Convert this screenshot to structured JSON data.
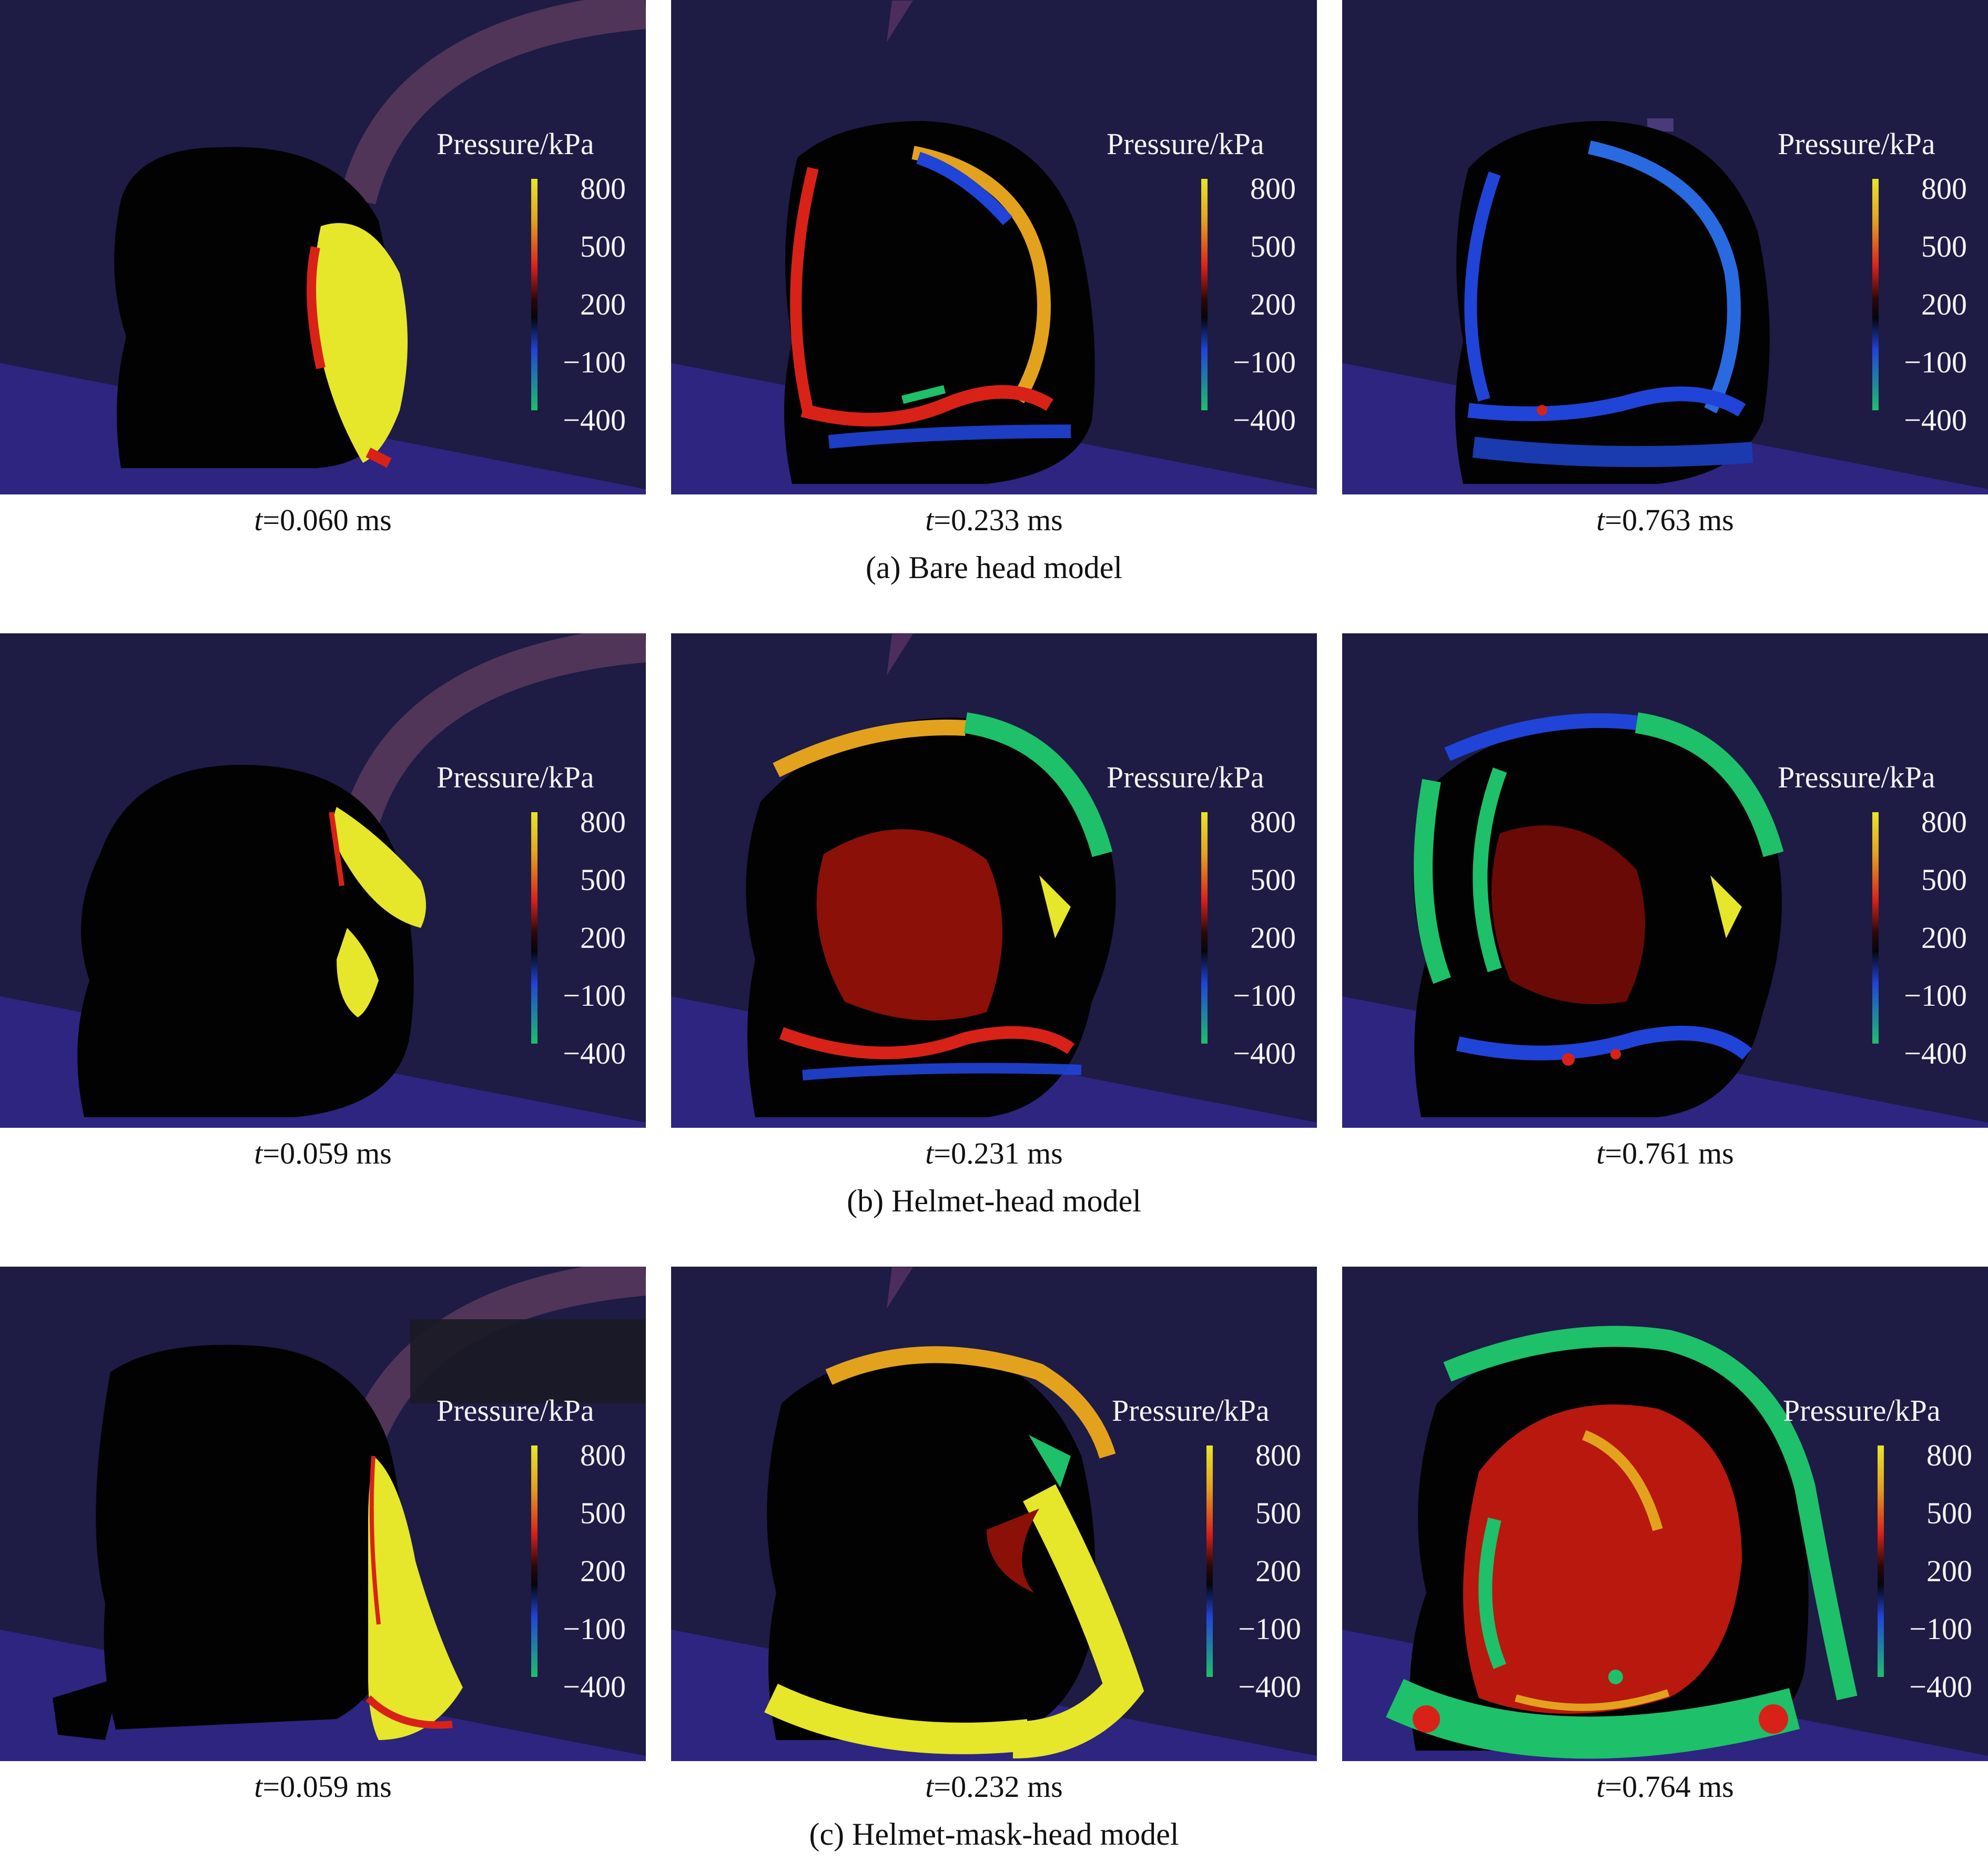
{
  "legend": {
    "title": "Pressure/kPa",
    "ticks": [
      "800",
      "500",
      "200",
      "−100",
      "−400"
    ]
  },
  "rows": [
    {
      "caption": "(a) Bare head model",
      "panels": [
        {
          "t_label": "t",
          "t_value": "=0.060 ms",
          "variant": "a-early"
        },
        {
          "t_label": "t",
          "t_value": "=0.233 ms",
          "variant": "a-mid"
        },
        {
          "t_label": "t",
          "t_value": "=0.763 ms",
          "variant": "a-late"
        }
      ]
    },
    {
      "caption": "(b) Helmet-head model",
      "panels": [
        {
          "t_label": "t",
          "t_value": "=0.059 ms",
          "variant": "b-early"
        },
        {
          "t_label": "t",
          "t_value": "=0.231 ms",
          "variant": "b-mid"
        },
        {
          "t_label": "t",
          "t_value": "=0.761 ms",
          "variant": "b-late"
        }
      ]
    },
    {
      "caption": "(c) Helmet-mask-head model",
      "panels": [
        {
          "t_label": "t",
          "t_value": "=0.059 ms",
          "variant": "c-early"
        },
        {
          "t_label": "t",
          "t_value": "=0.232 ms",
          "variant": "c-mid"
        },
        {
          "t_label": "t",
          "t_value": "=0.764 ms",
          "variant": "c-late"
        }
      ]
    }
  ],
  "colors": {
    "background": "#1e1b45",
    "floor": "#3a2e9a",
    "high": "#e6e62a",
    "mid_high": "#d82218",
    "neutral": "#05050a",
    "low": "#2044d8",
    "min": "#1ec06a"
  }
}
